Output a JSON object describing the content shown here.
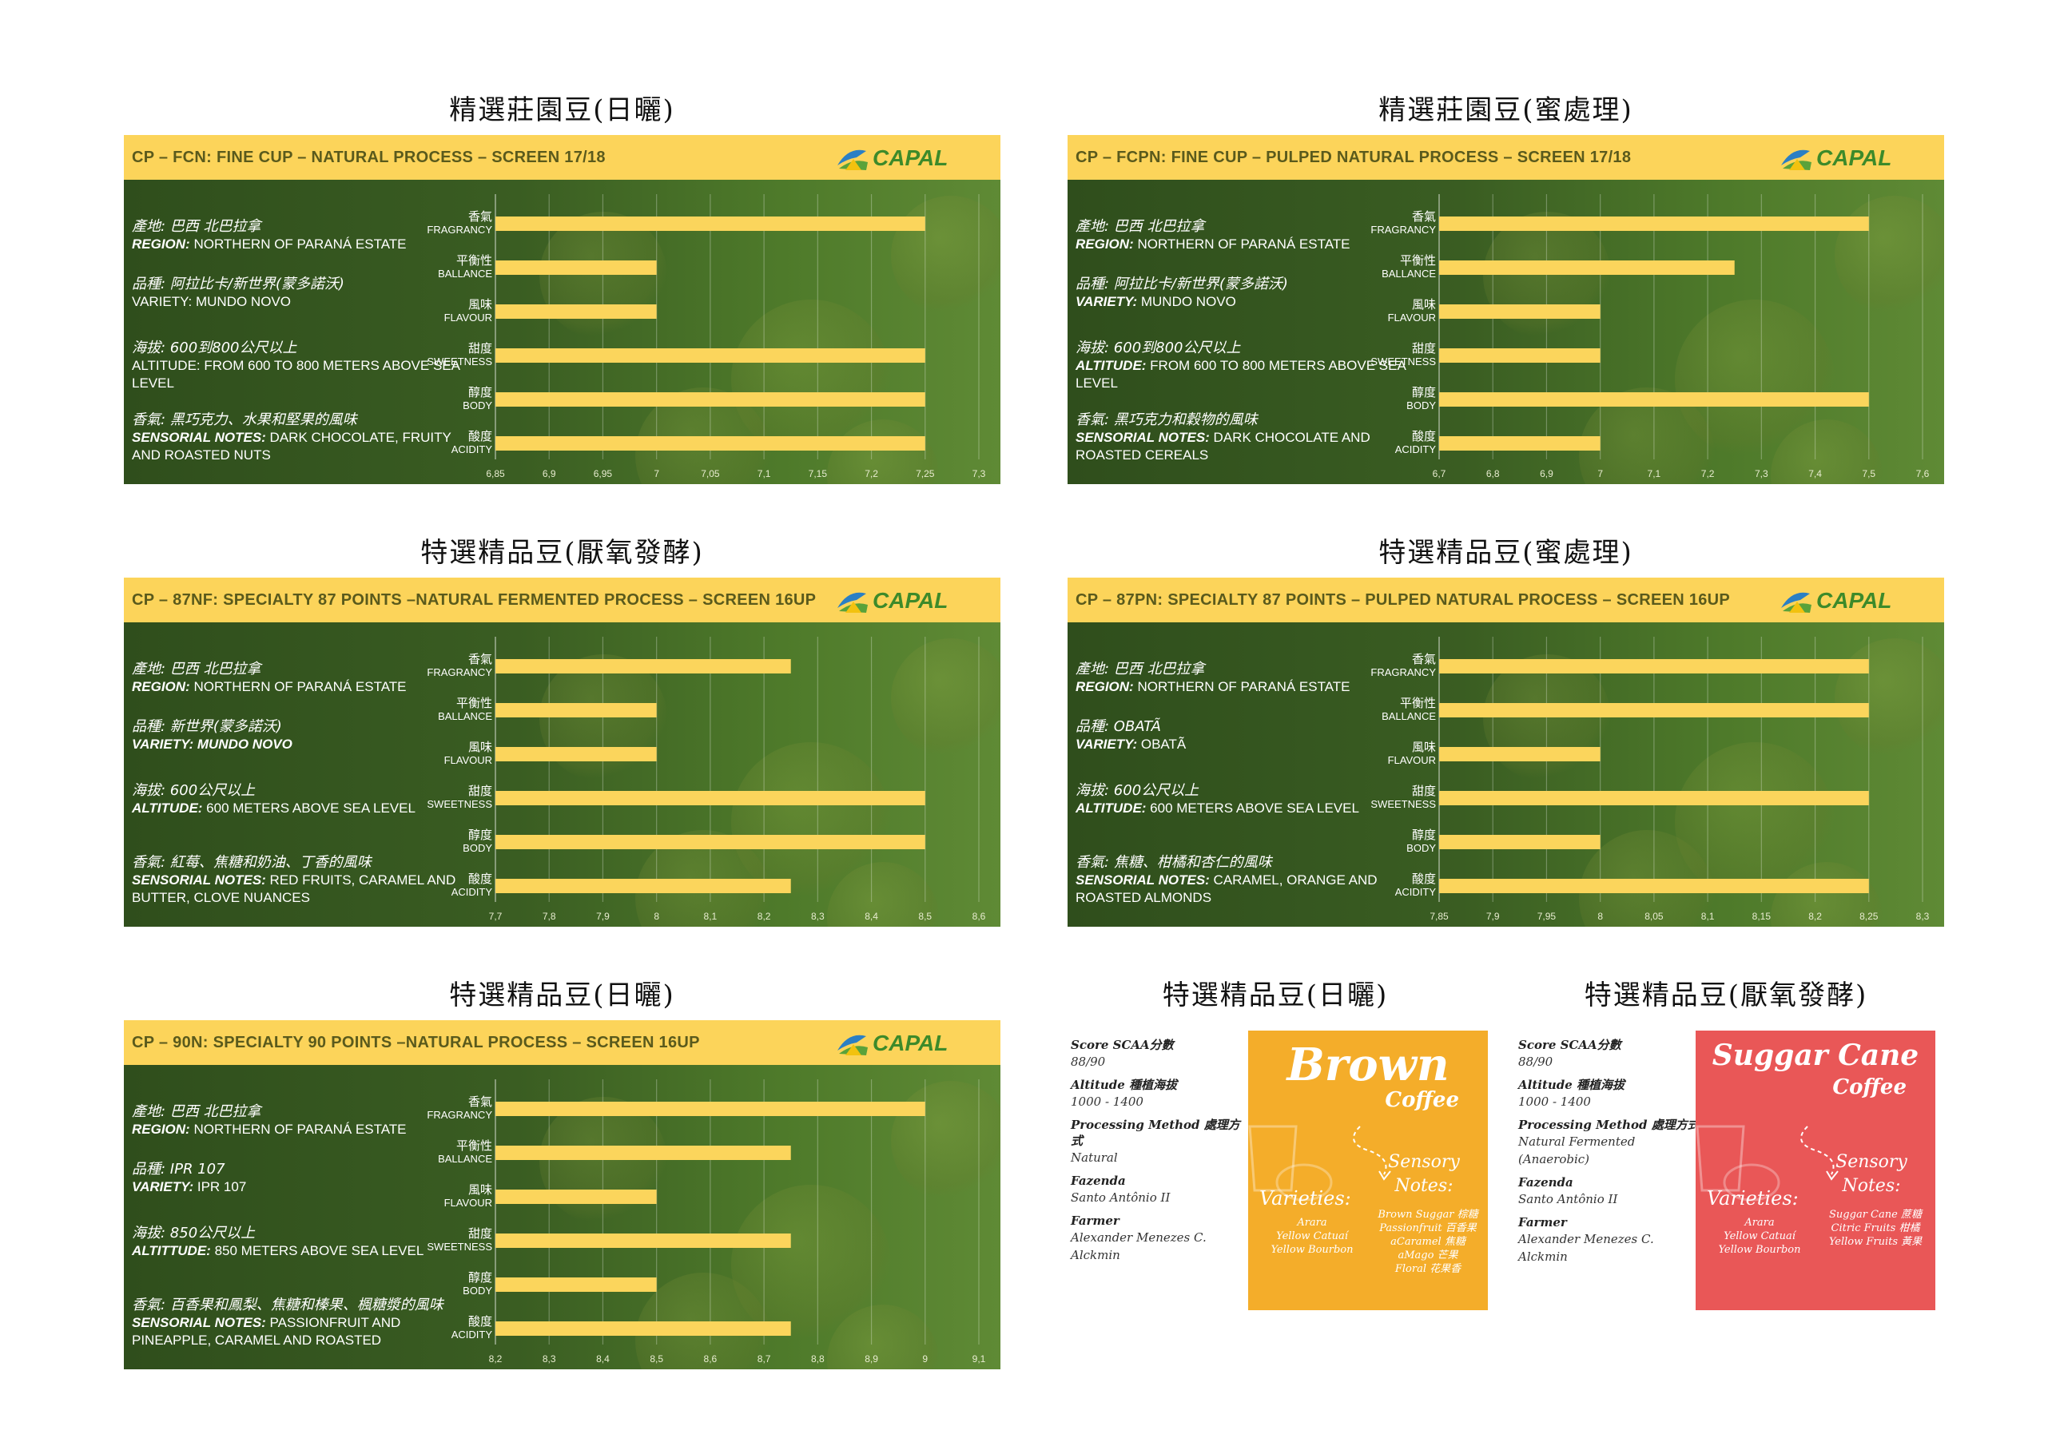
{
  "sections": [
    {
      "title": "精選莊園豆(日曬)"
    },
    {
      "title": "精選莊園豆(蜜處理)"
    },
    {
      "title": "特選精品豆(厭氧發酵)"
    },
    {
      "title": "特選精品豆(蜜處理)"
    },
    {
      "title": "特選精品豆(日曬)"
    },
    {
      "title": "特選精品豆(日曬)"
    },
    {
      "title": "特選精品豆(厭氧發酵)"
    }
  ],
  "cards": [
    {
      "header": "CP – FCN: FINE CUP – NATURAL PROCESS – SCREEN 17/18",
      "info": [
        {
          "zh": "產地: 巴西 北巴拉拿",
          "en_label": "REGION:",
          "en": " NORTHERN OF PARANÁ ESTATE"
        },
        {
          "zh": "品種: 阿拉比卡/新世界(蒙多諾沃)",
          "en_label": "",
          "en": "VARIETY: MUNDO NOVO"
        },
        {
          "zh": "海拔: 600到800公尺以上",
          "en_label": "",
          "en": "ALTITUDE: FROM 600 TO 800 METERS ABOVE SEA LEVEL"
        },
        {
          "zh": "香氣: 黑巧克力、水果和堅果的風味",
          "en_label": "SENSORIAL NOTES:",
          "en": "  DARK CHOCOLATE, FRUITY AND ROASTED NUTS"
        }
      ]
    },
    {
      "header": "CP – FCPN: FINE CUP – PULPED NATURAL PROCESS – SCREEN 17/18",
      "info": [
        {
          "zh": "產地: 巴西 北巴拉拿",
          "en_label": "REGION:",
          "en": " NORTHERN OF PARANÁ ESTATE"
        },
        {
          "zh": "品種: 阿拉比卡/新世界(蒙多諾沃)",
          "en_label": "VARIETY:",
          "en": " MUNDO NOVO"
        },
        {
          "zh": "海拔: 600到800公尺以上",
          "en_label": "ALTITUDE:",
          "en": " FROM 600 TO 800 METERS ABOVE SEA LEVEL"
        },
        {
          "zh": "香氣: 黑巧克力和穀物的風味",
          "en_label": "SENSORIAL NOTES:",
          "en": " DARK CHOCOLATE AND ROASTED CEREALS"
        }
      ]
    },
    {
      "header": "CP – 87NF: SPECIALTY 87 POINTS –NATURAL FERMENTED PROCESS – SCREEN 16UP",
      "info": [
        {
          "zh": "產地: 巴西 北巴拉拿",
          "en_label": "REGION:",
          "en": " NORTHERN OF PARANÁ ESTATE"
        },
        {
          "zh": "品種: 新世界(蒙多諾沃)",
          "en_label": "VARIETY: MUNDO NOVO",
          "en": ""
        },
        {
          "zh": "海拔: 600公尺以上",
          "en_label": "ALTITUDE:",
          "en": " 600 METERS ABOVE SEA LEVEL"
        },
        {
          "zh": "香氣: 紅莓、焦糖和奶油、丁香的風味",
          "en_label": "SENSORIAL NOTES:",
          "en": " RED FRUITS, CARAMEL AND BUTTER, CLOVE NUANCES"
        }
      ]
    },
    {
      "header": "CP – 87PN: SPECIALTY 87 POINTS – PULPED NATURAL PROCESS – SCREEN 16UP",
      "info": [
        {
          "zh": "產地: 巴西 北巴拉拿",
          "en_label": "REGION:",
          "en": " NORTHERN OF PARANÁ ESTATE"
        },
        {
          "zh": "品種: OBATÃ",
          "en_label": "VARIETY:",
          "en": " OBATÃ"
        },
        {
          "zh": "海拔: 600公尺以上",
          "en_label": "ALTITUDE:",
          "en": " 600 METERS ABOVE SEA LEVEL"
        },
        {
          "zh": "香氣: 焦糖、柑橘和杏仁的風味",
          "en_label": "SENSORIAL NOTES:",
          "en": " CARAMEL, ORANGE AND ROASTED ALMONDS"
        }
      ]
    },
    {
      "header": "CP – 90N: SPECIALTY 90 POINTS –NATURAL PROCESS – SCREEN 16UP",
      "info": [
        {
          "zh": "產地: 巴西 北巴拉拿",
          "en_label": "REGION:",
          "en": " NORTHERN OF PARANÁ ESTATE"
        },
        {
          "zh": "品種: IPR 107",
          "en_label": "VARIETY:",
          "en": " IPR 107"
        },
        {
          "zh": "海拔: 850公尺以上",
          "en_label": "ALTITTUDE:",
          "en": " 850 METERS ABOVE SEA LEVEL"
        },
        {
          "zh": "香氣: 百香果和鳳梨、焦糖和榛果、楓糖漿的風味",
          "en_label": "SENSORIAL NOTES:",
          "en": " PASSIONFRUIT AND PINEAPPLE, CARAMEL AND ROASTED"
        }
      ]
    }
  ],
  "chart_data": [
    {
      "type": "bar",
      "categories": [
        {
          "zh": "香氣",
          "en": "FRAGRANCY"
        },
        {
          "zh": "平衡性",
          "en": "BALLANCE"
        },
        {
          "zh": "風味",
          "en": "FLAVOUR"
        },
        {
          "zh": "甜度",
          "en": "SWEETNESS"
        },
        {
          "zh": "醇度",
          "en": "BODY"
        },
        {
          "zh": "酸度",
          "en": "ACIDITY"
        }
      ],
      "values": [
        7.25,
        7,
        7,
        7.25,
        7.25,
        7.25
      ],
      "xlim": [
        6.85,
        7.3
      ],
      "ticks": [
        "6,85",
        "6,9",
        "6,95",
        "7",
        "7,05",
        "7,1",
        "7,15",
        "7,2",
        "7,25",
        "7,3"
      ],
      "bar_color": "#fbd55c"
    },
    {
      "type": "bar",
      "categories": [
        {
          "zh": "香氣",
          "en": "FRAGRANCY"
        },
        {
          "zh": "平衡性",
          "en": "BALLANCE"
        },
        {
          "zh": "風味",
          "en": "FLAVOUR"
        },
        {
          "zh": "甜度",
          "en": "SWEETNESS"
        },
        {
          "zh": "醇度",
          "en": "BODY"
        },
        {
          "zh": "酸度",
          "en": "ACIDITY"
        }
      ],
      "values": [
        7.5,
        7.25,
        7,
        7,
        7.5,
        7
      ],
      "xlim": [
        6.7,
        7.6
      ],
      "ticks": [
        "6,7",
        "6,8",
        "6,9",
        "7",
        "7,1",
        "7,2",
        "7,3",
        "7,4",
        "7,5",
        "7,6"
      ],
      "bar_color": "#fbd55c"
    },
    {
      "type": "bar",
      "categories": [
        {
          "zh": "香氣",
          "en": "FRAGRANCY"
        },
        {
          "zh": "平衡性",
          "en": "BALLANCE"
        },
        {
          "zh": "風味",
          "en": "FLAVOUR"
        },
        {
          "zh": "甜度",
          "en": "SWEETNESS"
        },
        {
          "zh": "醇度",
          "en": "BODY"
        },
        {
          "zh": "酸度",
          "en": "ACIDITY"
        }
      ],
      "values": [
        8.25,
        8,
        8,
        8.5,
        8.5,
        8.25
      ],
      "xlim": [
        7.7,
        8.6
      ],
      "ticks": [
        "7,7",
        "7,8",
        "7,9",
        "8",
        "8,1",
        "8,2",
        "8,3",
        "8,4",
        "8,5",
        "8,6"
      ],
      "bar_color": "#fbd55c"
    },
    {
      "type": "bar",
      "categories": [
        {
          "zh": "香氣",
          "en": "FRAGRANCY"
        },
        {
          "zh": "平衡性",
          "en": "BALLANCE"
        },
        {
          "zh": "風味",
          "en": "FLAVOUR"
        },
        {
          "zh": "甜度",
          "en": "SWEETNESS"
        },
        {
          "zh": "醇度",
          "en": "BODY"
        },
        {
          "zh": "酸度",
          "en": "ACIDITY"
        }
      ],
      "values": [
        8.25,
        8.25,
        8,
        8.25,
        8,
        8.25
      ],
      "xlim": [
        7.85,
        8.3
      ],
      "ticks": [
        "7,85",
        "7,9",
        "7,95",
        "8",
        "8,05",
        "8,1",
        "8,15",
        "8,2",
        "8,25",
        "8,3"
      ],
      "bar_color": "#fbd55c"
    },
    {
      "type": "bar",
      "categories": [
        {
          "zh": "香氣",
          "en": "FRAGRANCY"
        },
        {
          "zh": "平衡性",
          "en": "BALLANCE"
        },
        {
          "zh": "風味",
          "en": "FLAVOUR"
        },
        {
          "zh": "甜度",
          "en": "SWEETNESS"
        },
        {
          "zh": "醇度",
          "en": "BODY"
        },
        {
          "zh": "酸度",
          "en": "ACIDITY"
        }
      ],
      "values": [
        9,
        8.75,
        8.5,
        8.75,
        8.5,
        8.75
      ],
      "xlim": [
        8.2,
        9.1
      ],
      "ticks": [
        "8,2",
        "8,3",
        "8,4",
        "8,5",
        "8,6",
        "8,7",
        "8,8",
        "8,9",
        "9",
        "9,1"
      ],
      "bar_color": "#fbd55c"
    }
  ],
  "panels": [
    {
      "items": [
        {
          "label": "Score SCAA分數",
          "value": "88/90"
        },
        {
          "label": "Altitude 種植海拔",
          "value": "1000 - 1400"
        },
        {
          "label": "Processing Method 處理方式",
          "value": "Natural"
        },
        {
          "label": "Fazenda",
          "value": "Santo Antônio II"
        },
        {
          "label": "Farmer",
          "value": "Alexander Menezes C. Alckmin"
        }
      ],
      "poster": {
        "bg": "#f4ad2a",
        "title": "Brown",
        "subtitle": "Coffee",
        "varieties_label": "Varieties:",
        "varieties": "Arara\nYellow Catuaí\nYellow Bourbon",
        "notes_label": "Sensory Notes:",
        "notes": "Brown Suggar 棕糖\nPassionfruit 百香果\naCaramel 焦糖\naMago 芒果\nFloral 花果香"
      }
    },
    {
      "items": [
        {
          "label": "Score SCAA分數",
          "value": "88/90"
        },
        {
          "label": "Altitude 種植海拔",
          "value": "1000 - 1400"
        },
        {
          "label": "Processing Method 處理方式",
          "value": "Natural Fermented (Anaerobic)"
        },
        {
          "label": "Fazenda",
          "value": "Santo Antônio II"
        },
        {
          "label": "Farmer",
          "value": "Alexander Menezes C. Alckmin"
        }
      ],
      "poster": {
        "bg": "#e95757",
        "title": "Suggar Cane",
        "subtitle": "Coffee",
        "varieties_label": "Varieties:",
        "varieties": "Arara\nYellow Catuaí\nYellow Bourbon",
        "notes_label": "Sensory Notes:",
        "notes": "Suggar Cane 蔗糖\nCitric Fruits 柑橘\nYellow Fruits 黃果"
      }
    }
  ],
  "colors": {
    "card_header": "#fcd45a",
    "card_body": "#3a5a22",
    "bar": "#fbd55c"
  }
}
